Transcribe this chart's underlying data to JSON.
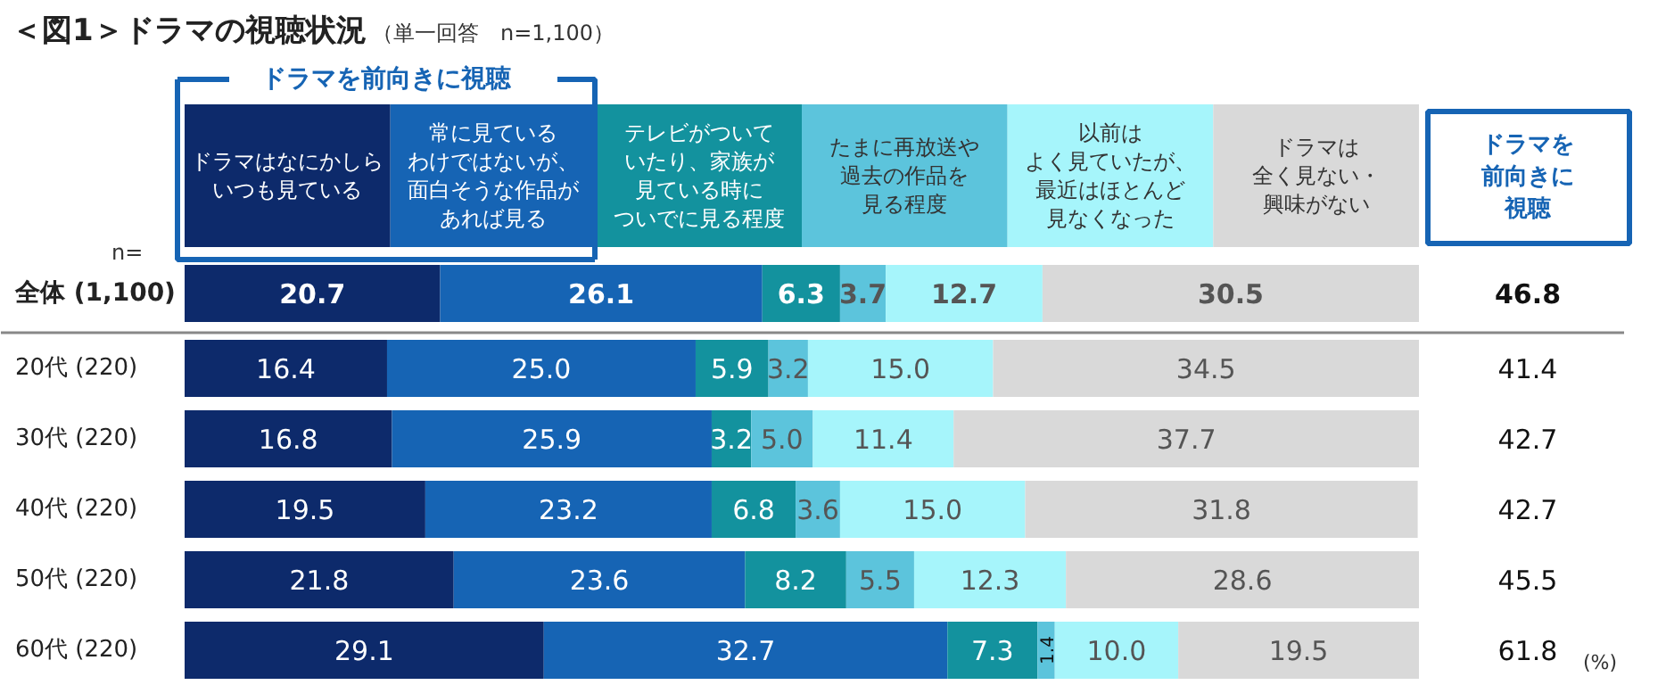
{
  "chart_data": {
    "type": "bar",
    "orientation": "horizontal",
    "stacked": true,
    "legend": "top",
    "grid": false,
    "tick_labels": "y",
    "title": "＜図1＞ドラマの視聴状況",
    "subtitle": "（単一回答　n=1,100）",
    "xlim": [
      0,
      100
    ],
    "categories": [
      "全体 (1,100)",
      "20代 (220)",
      "30代 (220)",
      "40代 (220)",
      "50代 (220)",
      "60代 (220)"
    ],
    "series": [
      {
        "name": "ドラマはなにかしらいつも見ている",
        "color": "#0d2a6b",
        "values": [
          20.7,
          16.4,
          16.8,
          19.5,
          21.8,
          29.1
        ],
        "value_labels": [
          "20.7",
          "16.4",
          "16.8",
          "19.5",
          "21.8",
          "29.1"
        ]
      },
      {
        "name": "常に見ているわけではないが、面白そうな作品があれば見る",
        "color": "#1664b4",
        "values": [
          26.1,
          25.0,
          25.9,
          23.2,
          23.6,
          32.7
        ],
        "value_labels": [
          "26.1",
          "25.0",
          "25.9",
          "23.2",
          "23.6",
          "32.7"
        ]
      },
      {
        "name": "テレビがついていたり、家族が見ている時についでに見る程度",
        "color": "#13929e",
        "values": [
          6.3,
          5.9,
          3.2,
          6.8,
          8.2,
          7.3
        ],
        "value_labels": [
          "6.3",
          "5.9",
          "3.2",
          "6.8",
          "8.2",
          "7.3"
        ]
      },
      {
        "name": "たまに再放送や過去の作品を見る程度",
        "color": "#5cc4dc",
        "values": [
          3.7,
          3.2,
          5.0,
          3.6,
          5.5,
          1.4
        ],
        "value_labels": [
          "3.7",
          "3.2",
          "5.0",
          "3.6",
          "5.5",
          "1.4"
        ]
      },
      {
        "name": "以前はよく見ていたが、最近はほとんど見なくなった",
        "color": "#a6f5fb",
        "values": [
          12.7,
          15.0,
          11.4,
          15.0,
          12.3,
          10.0
        ],
        "value_labels": [
          "12.7",
          "15.0",
          "11.4",
          "15.0",
          "12.3",
          "10.0"
        ]
      },
      {
        "name": "ドラマは全く見ない・興味がない",
        "color": "#d9d9d9",
        "values": [
          30.5,
          34.5,
          37.7,
          31.8,
          28.6,
          19.5
        ],
        "value_labels": [
          "30.5",
          "34.5",
          "37.7",
          "31.8",
          "28.6",
          "19.5"
        ]
      }
    ],
    "annotations": [
      "ドラマを前向きに視聴",
      "ドラマを前向きに視聴",
      "n=",
      "(%)",
      "46.8",
      "41.4",
      "42.7",
      "42.7",
      "45.5",
      "61.8"
    ]
  }
}
